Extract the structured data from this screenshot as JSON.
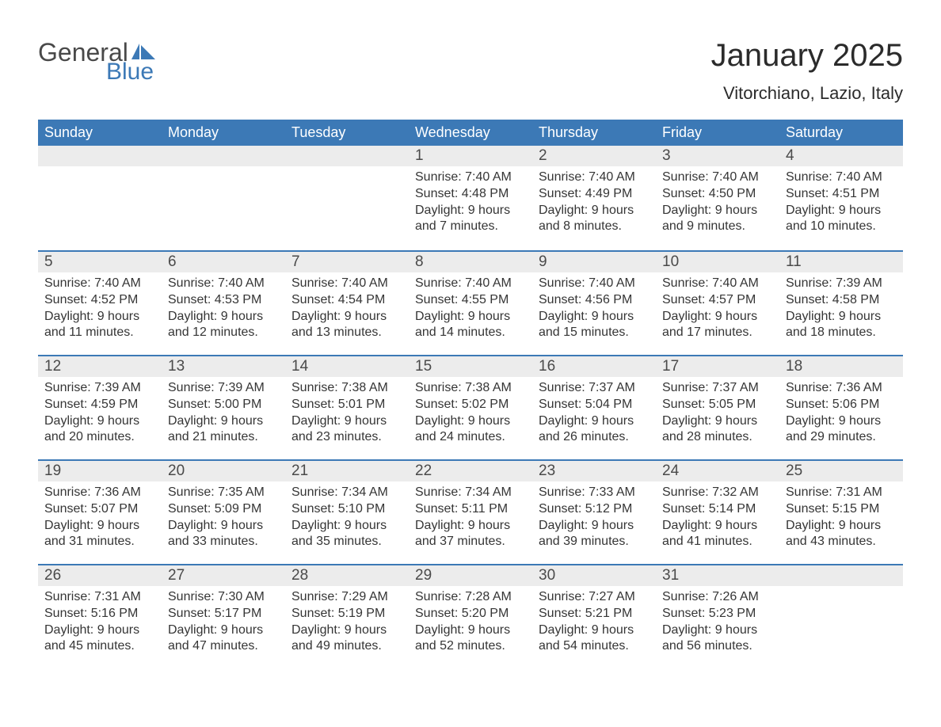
{
  "brand": {
    "text_general": "General",
    "text_blue": "Blue",
    "primary_color": "#3c79b6",
    "text_color": "#494949"
  },
  "title": {
    "month_year": "January 2025",
    "location": "Vitorchiano, Lazio, Italy"
  },
  "calendar": {
    "day_headers": [
      "Sunday",
      "Monday",
      "Tuesday",
      "Wednesday",
      "Thursday",
      "Friday",
      "Saturday"
    ],
    "header_bg": "#3c79b6",
    "header_fg": "#ffffff",
    "daynum_bg": "#ececec",
    "divider_color": "#3c79b6",
    "weeks": [
      [
        {
          "num": "",
          "lines": []
        },
        {
          "num": "",
          "lines": []
        },
        {
          "num": "",
          "lines": []
        },
        {
          "num": "1",
          "lines": [
            "Sunrise: 7:40 AM",
            "Sunset: 4:48 PM",
            "Daylight: 9 hours and 7 minutes."
          ]
        },
        {
          "num": "2",
          "lines": [
            "Sunrise: 7:40 AM",
            "Sunset: 4:49 PM",
            "Daylight: 9 hours and 8 minutes."
          ]
        },
        {
          "num": "3",
          "lines": [
            "Sunrise: 7:40 AM",
            "Sunset: 4:50 PM",
            "Daylight: 9 hours and 9 minutes."
          ]
        },
        {
          "num": "4",
          "lines": [
            "Sunrise: 7:40 AM",
            "Sunset: 4:51 PM",
            "Daylight: 9 hours and 10 minutes."
          ]
        }
      ],
      [
        {
          "num": "5",
          "lines": [
            "Sunrise: 7:40 AM",
            "Sunset: 4:52 PM",
            "Daylight: 9 hours and 11 minutes."
          ]
        },
        {
          "num": "6",
          "lines": [
            "Sunrise: 7:40 AM",
            "Sunset: 4:53 PM",
            "Daylight: 9 hours and 12 minutes."
          ]
        },
        {
          "num": "7",
          "lines": [
            "Sunrise: 7:40 AM",
            "Sunset: 4:54 PM",
            "Daylight: 9 hours and 13 minutes."
          ]
        },
        {
          "num": "8",
          "lines": [
            "Sunrise: 7:40 AM",
            "Sunset: 4:55 PM",
            "Daylight: 9 hours and 14 minutes."
          ]
        },
        {
          "num": "9",
          "lines": [
            "Sunrise: 7:40 AM",
            "Sunset: 4:56 PM",
            "Daylight: 9 hours and 15 minutes."
          ]
        },
        {
          "num": "10",
          "lines": [
            "Sunrise: 7:40 AM",
            "Sunset: 4:57 PM",
            "Daylight: 9 hours and 17 minutes."
          ]
        },
        {
          "num": "11",
          "lines": [
            "Sunrise: 7:39 AM",
            "Sunset: 4:58 PM",
            "Daylight: 9 hours and 18 minutes."
          ]
        }
      ],
      [
        {
          "num": "12",
          "lines": [
            "Sunrise: 7:39 AM",
            "Sunset: 4:59 PM",
            "Daylight: 9 hours and 20 minutes."
          ]
        },
        {
          "num": "13",
          "lines": [
            "Sunrise: 7:39 AM",
            "Sunset: 5:00 PM",
            "Daylight: 9 hours and 21 minutes."
          ]
        },
        {
          "num": "14",
          "lines": [
            "Sunrise: 7:38 AM",
            "Sunset: 5:01 PM",
            "Daylight: 9 hours and 23 minutes."
          ]
        },
        {
          "num": "15",
          "lines": [
            "Sunrise: 7:38 AM",
            "Sunset: 5:02 PM",
            "Daylight: 9 hours and 24 minutes."
          ]
        },
        {
          "num": "16",
          "lines": [
            "Sunrise: 7:37 AM",
            "Sunset: 5:04 PM",
            "Daylight: 9 hours and 26 minutes."
          ]
        },
        {
          "num": "17",
          "lines": [
            "Sunrise: 7:37 AM",
            "Sunset: 5:05 PM",
            "Daylight: 9 hours and 28 minutes."
          ]
        },
        {
          "num": "18",
          "lines": [
            "Sunrise: 7:36 AM",
            "Sunset: 5:06 PM",
            "Daylight: 9 hours and 29 minutes."
          ]
        }
      ],
      [
        {
          "num": "19",
          "lines": [
            "Sunrise: 7:36 AM",
            "Sunset: 5:07 PM",
            "Daylight: 9 hours and 31 minutes."
          ]
        },
        {
          "num": "20",
          "lines": [
            "Sunrise: 7:35 AM",
            "Sunset: 5:09 PM",
            "Daylight: 9 hours and 33 minutes."
          ]
        },
        {
          "num": "21",
          "lines": [
            "Sunrise: 7:34 AM",
            "Sunset: 5:10 PM",
            "Daylight: 9 hours and 35 minutes."
          ]
        },
        {
          "num": "22",
          "lines": [
            "Sunrise: 7:34 AM",
            "Sunset: 5:11 PM",
            "Daylight: 9 hours and 37 minutes."
          ]
        },
        {
          "num": "23",
          "lines": [
            "Sunrise: 7:33 AM",
            "Sunset: 5:12 PM",
            "Daylight: 9 hours and 39 minutes."
          ]
        },
        {
          "num": "24",
          "lines": [
            "Sunrise: 7:32 AM",
            "Sunset: 5:14 PM",
            "Daylight: 9 hours and 41 minutes."
          ]
        },
        {
          "num": "25",
          "lines": [
            "Sunrise: 7:31 AM",
            "Sunset: 5:15 PM",
            "Daylight: 9 hours and 43 minutes."
          ]
        }
      ],
      [
        {
          "num": "26",
          "lines": [
            "Sunrise: 7:31 AM",
            "Sunset: 5:16 PM",
            "Daylight: 9 hours and 45 minutes."
          ]
        },
        {
          "num": "27",
          "lines": [
            "Sunrise: 7:30 AM",
            "Sunset: 5:17 PM",
            "Daylight: 9 hours and 47 minutes."
          ]
        },
        {
          "num": "28",
          "lines": [
            "Sunrise: 7:29 AM",
            "Sunset: 5:19 PM",
            "Daylight: 9 hours and 49 minutes."
          ]
        },
        {
          "num": "29",
          "lines": [
            "Sunrise: 7:28 AM",
            "Sunset: 5:20 PM",
            "Daylight: 9 hours and 52 minutes."
          ]
        },
        {
          "num": "30",
          "lines": [
            "Sunrise: 7:27 AM",
            "Sunset: 5:21 PM",
            "Daylight: 9 hours and 54 minutes."
          ]
        },
        {
          "num": "31",
          "lines": [
            "Sunrise: 7:26 AM",
            "Sunset: 5:23 PM",
            "Daylight: 9 hours and 56 minutes."
          ]
        },
        {
          "num": "",
          "lines": []
        }
      ]
    ]
  }
}
